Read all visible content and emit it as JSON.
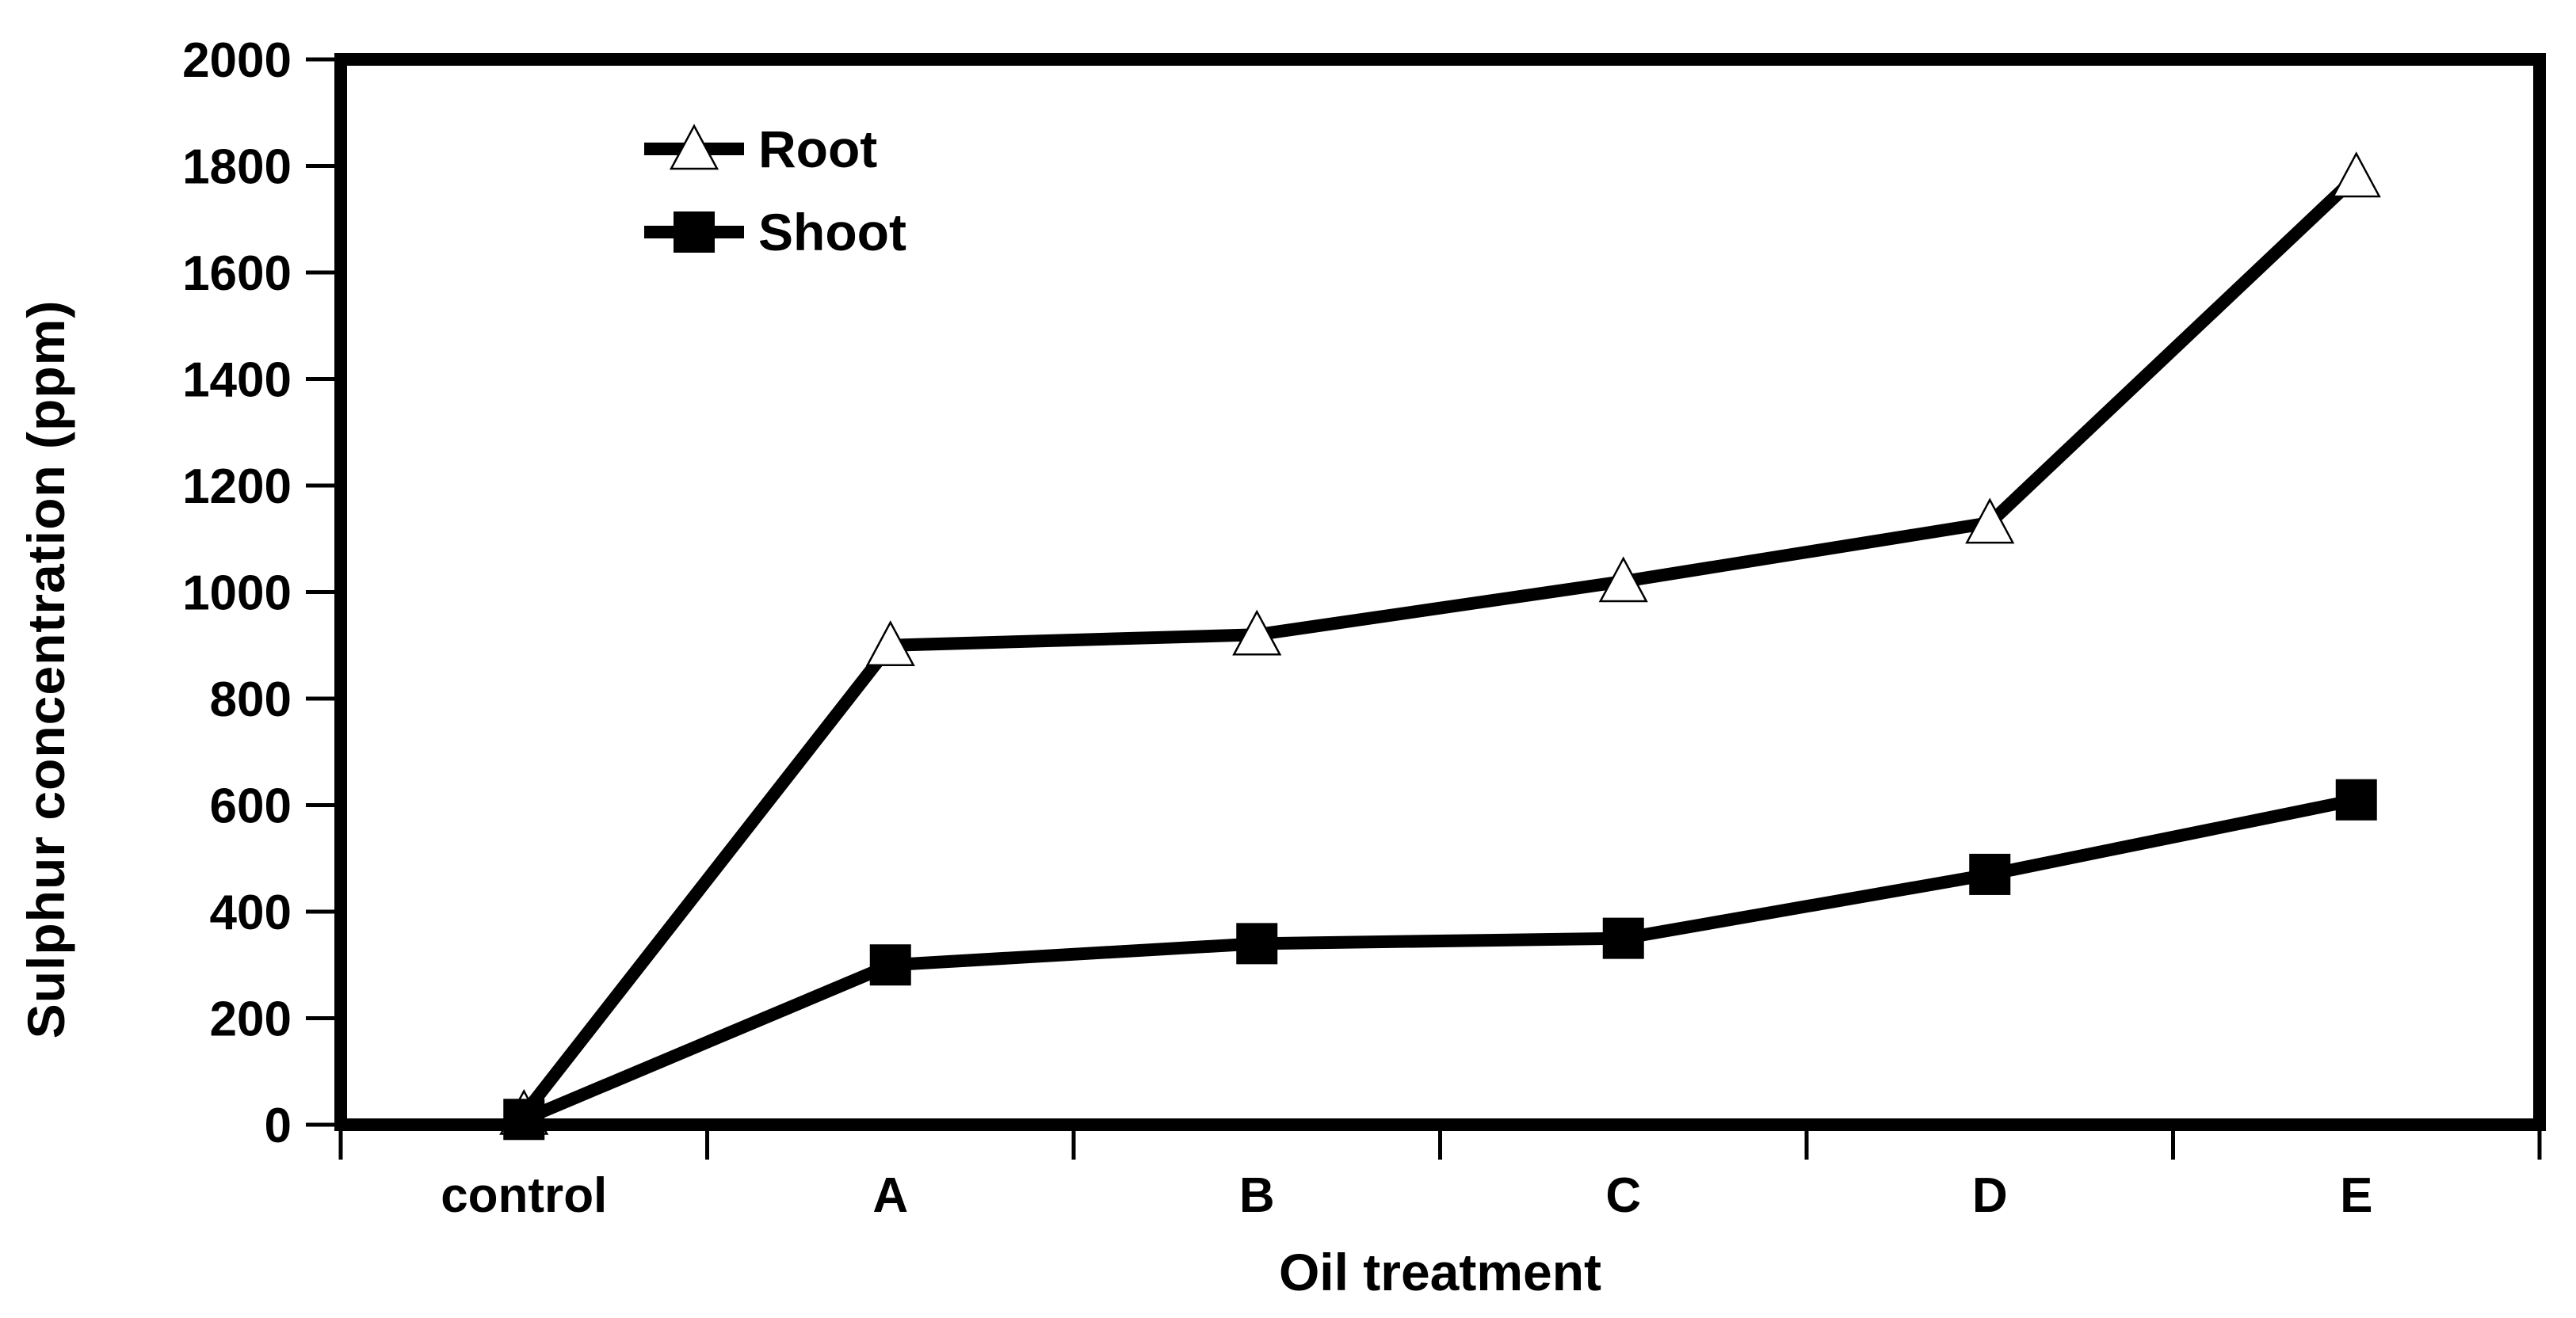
{
  "chart_data": {
    "type": "line",
    "title": "",
    "categories": [
      "control",
      "A",
      "B",
      "C",
      "D",
      "E"
    ],
    "series": [
      {
        "name": "Root",
        "marker": "open-triangle",
        "values": [
          20,
          900,
          920,
          1020,
          1130,
          1780
        ]
      },
      {
        "name": "Shoot",
        "marker": "filled-square",
        "values": [
          10,
          300,
          340,
          350,
          470,
          610
        ]
      }
    ],
    "xlabel": "Oil treatment",
    "ylabel": "Sulphur concentration (ppm)",
    "ylim": [
      0,
      2000
    ],
    "ytick_step": 200,
    "yticks": [
      0,
      200,
      400,
      600,
      800,
      1000,
      1200,
      1400,
      1600,
      1800,
      2000
    ],
    "grid": false,
    "legend_position": "top-left-inside",
    "line_color": "#000000",
    "marker_fill_open": "#ffffff",
    "background": "#ffffff"
  }
}
